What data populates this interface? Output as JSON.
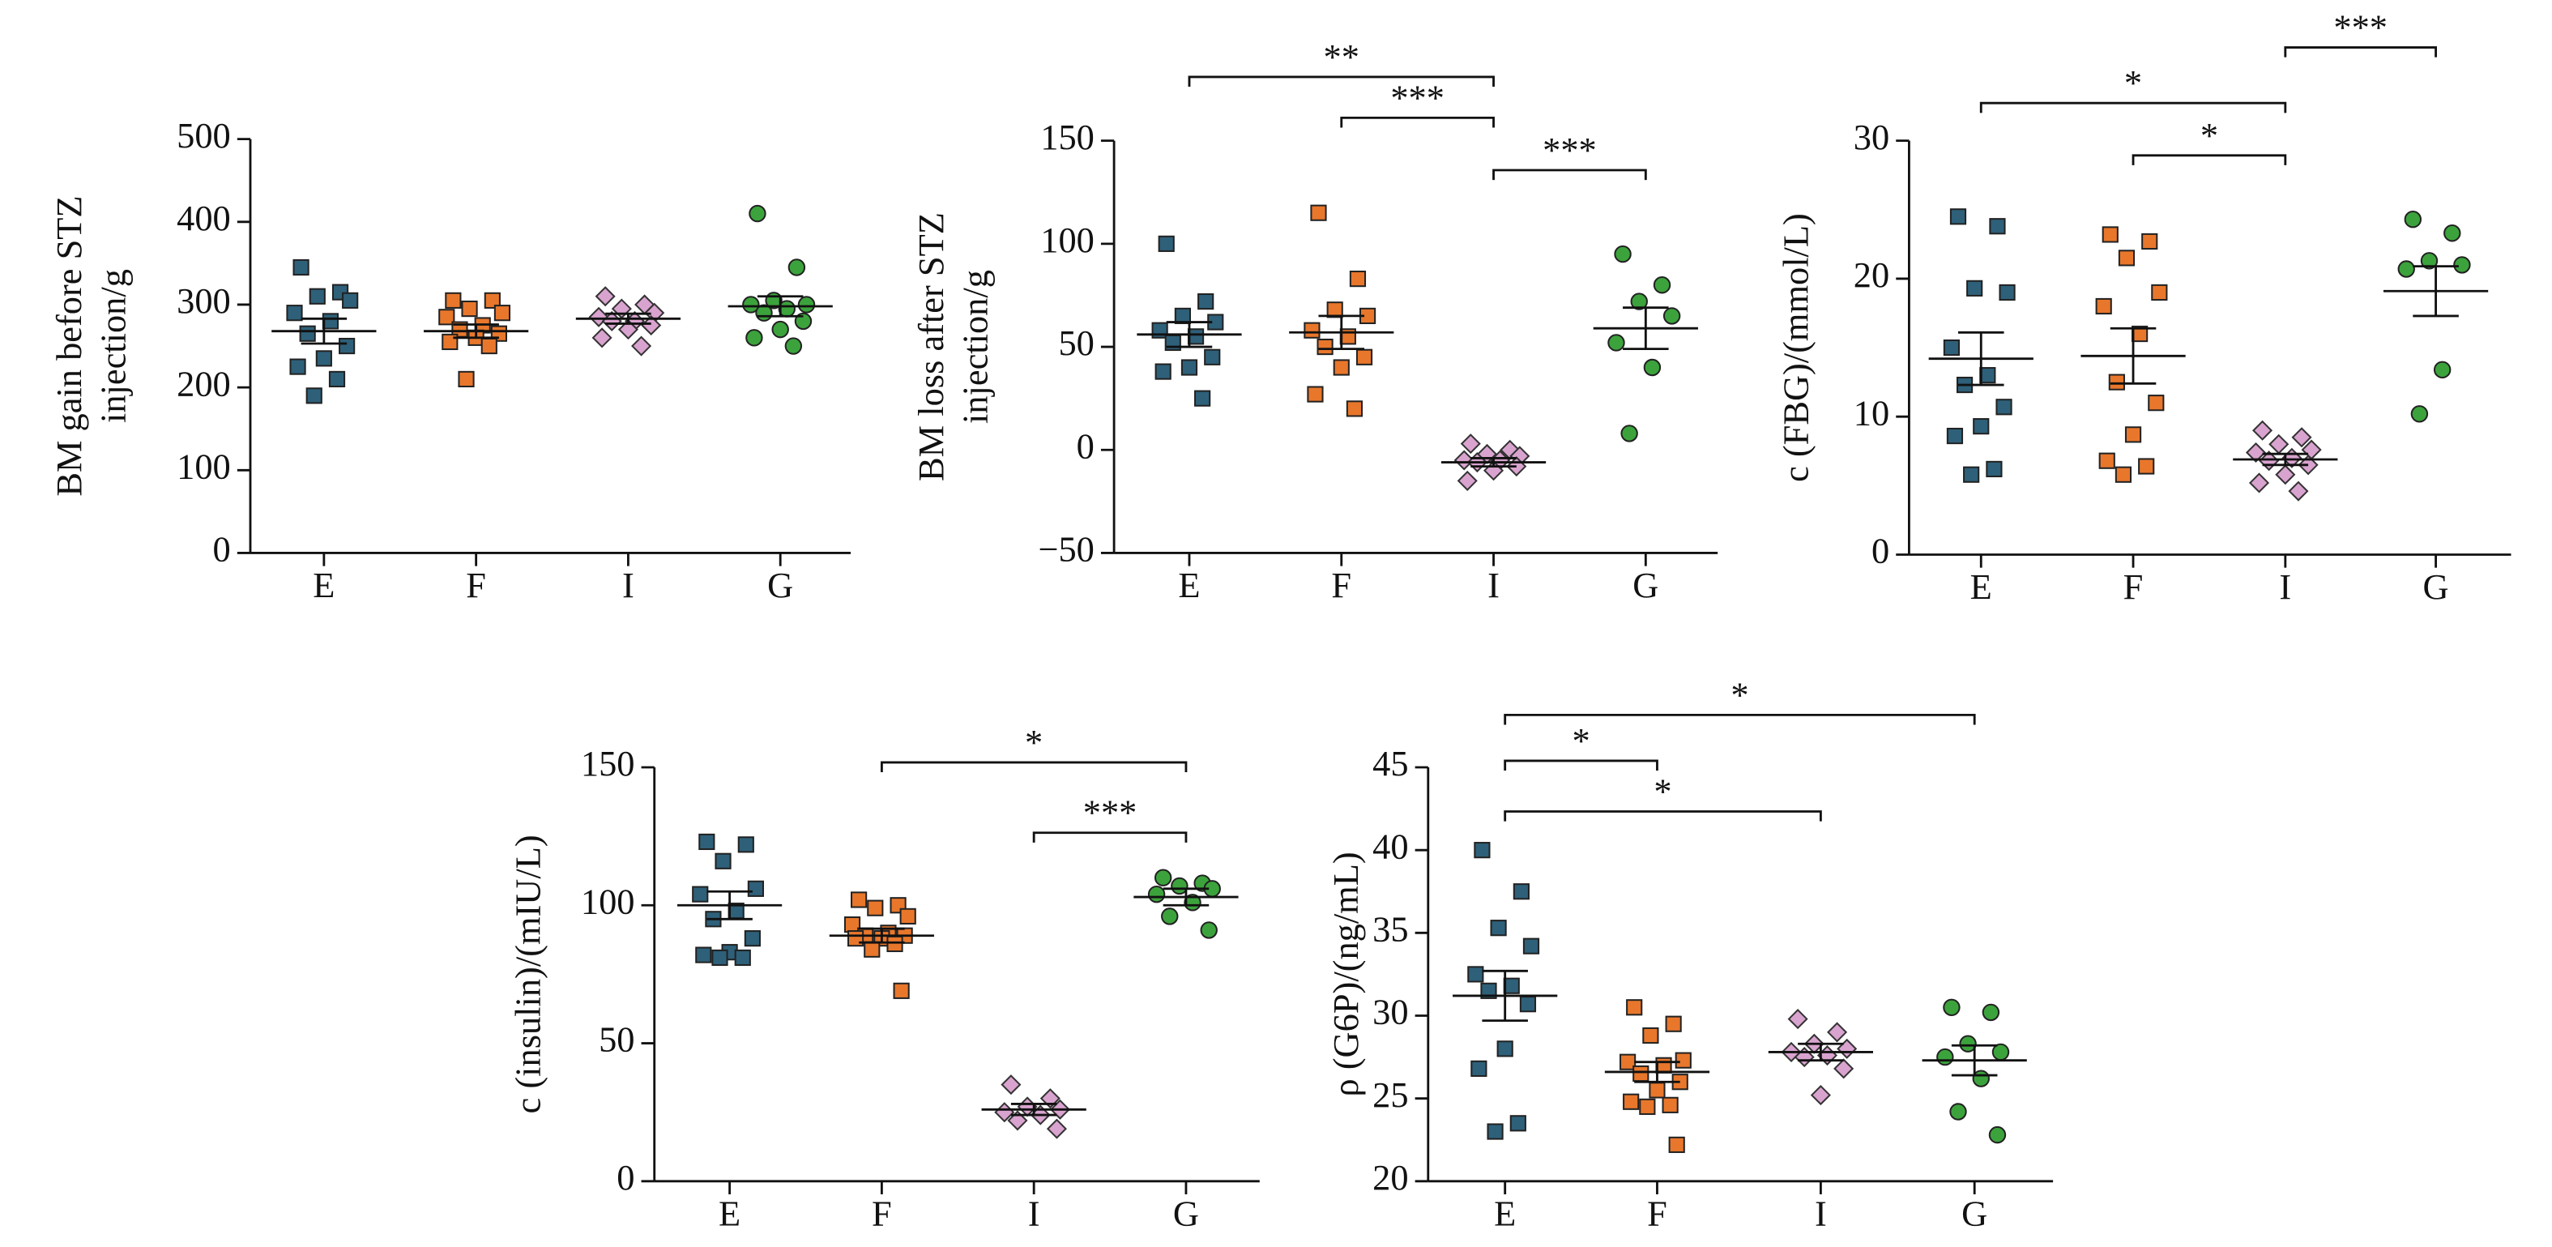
{
  "chart_data": [
    {
      "type": "dot",
      "ylabel": [
        "BM gain before STZ",
        "injection/g"
      ],
      "categories": [
        "E",
        "F",
        "I",
        "G"
      ],
      "ylim": [
        0,
        500
      ],
      "yticks": [
        0,
        100,
        200,
        300,
        400,
        500
      ],
      "colors": [
        "#2e6079",
        "#e8772c",
        "#d9a3cf",
        "#3ca33c"
      ],
      "markers": [
        "square",
        "square",
        "diamond",
        "circle"
      ],
      "points": [
        [
          345,
          315,
          310,
          305,
          290,
          280,
          265,
          250,
          235,
          225,
          210,
          190
        ],
        [
          305,
          305,
          295,
          290,
          285,
          275,
          270,
          265,
          260,
          255,
          250,
          210
        ],
        [
          310,
          300,
          295,
          290,
          285,
          280,
          280,
          275,
          270,
          260,
          250
        ],
        [
          410,
          345,
          305,
          300,
          300,
          295,
          290,
          280,
          270,
          260,
          250
        ]
      ],
      "means": [
        268,
        268,
        283,
        298
      ],
      "errors": [
        15,
        8,
        6,
        12
      ],
      "brackets": []
    },
    {
      "type": "dot",
      "ylabel": [
        "BM loss after STZ",
        "injection/g"
      ],
      "categories": [
        "E",
        "F",
        "I",
        "G"
      ],
      "ylim": [
        -50,
        150
      ],
      "yticks": [
        {
          "value": -50,
          "label": "−50"
        },
        0,
        50,
        100,
        150
      ],
      "colors": [
        "#2e6079",
        "#e8772c",
        "#d9a3cf",
        "#3ca33c"
      ],
      "markers": [
        "square",
        "square",
        "diamond",
        "circle"
      ],
      "points": [
        [
          100,
          72,
          65,
          62,
          58,
          55,
          52,
          45,
          40,
          38,
          25
        ],
        [
          115,
          83,
          68,
          65,
          58,
          55,
          50,
          45,
          40,
          27,
          20
        ],
        [
          3,
          0,
          -2,
          -3,
          -5,
          -5,
          -6,
          -8,
          -10,
          -15
        ],
        [
          95,
          80,
          72,
          65,
          52,
          40,
          8
        ]
      ],
      "means": [
        56,
        57,
        -6,
        59
      ],
      "errors": [
        6,
        8,
        2,
        10
      ],
      "brackets": [
        {
          "from": "E",
          "to": "I",
          "label": "**"
        },
        {
          "from": "F",
          "to": "I",
          "label": "***"
        },
        {
          "from": "I",
          "to": "G",
          "label": "***"
        }
      ]
    },
    {
      "type": "dot",
      "ylabel": [
        "c (FBG)/(mmol/L)"
      ],
      "categories": [
        "E",
        "F",
        "I",
        "G"
      ],
      "ylim": [
        0,
        30
      ],
      "yticks": [
        0,
        10,
        20,
        30
      ],
      "colors": [
        "#2e6079",
        "#e8772c",
        "#d9a3cf",
        "#3ca33c"
      ],
      "markers": [
        "square",
        "square",
        "diamond",
        "circle"
      ],
      "points": [
        [
          24.5,
          23.8,
          19.3,
          19,
          15,
          13,
          12.3,
          10.7,
          9.3,
          8.6,
          6.2,
          5.8
        ],
        [
          23.2,
          22.7,
          21.5,
          19,
          18,
          16,
          12.5,
          11,
          8.7,
          6.8,
          6.4,
          5.8
        ],
        [
          9,
          8.5,
          8,
          7.6,
          7.4,
          7,
          6.8,
          6.5,
          5.8,
          5.2,
          4.6
        ],
        [
          24.3,
          23.3,
          21.3,
          21,
          20.7,
          13.4,
          10.2
        ]
      ],
      "means": [
        14.2,
        14.4,
        6.9,
        19.1
      ],
      "errors": [
        1.9,
        2,
        0.4,
        1.8
      ],
      "brackets": [
        {
          "from": "E",
          "to": "I",
          "label": "*"
        },
        {
          "from": "F",
          "to": "I",
          "label": "*"
        },
        {
          "from": "I",
          "to": "G",
          "label": "***"
        }
      ]
    },
    {
      "type": "dot",
      "ylabel": [
        "c (insulin)/(mIU/L)"
      ],
      "categories": [
        "E",
        "F",
        "I",
        "G"
      ],
      "ylim": [
        0,
        150
      ],
      "yticks": [
        0,
        50,
        100,
        150
      ],
      "colors": [
        "#2e6079",
        "#e8772c",
        "#d9a3cf",
        "#3ca33c"
      ],
      "markers": [
        "square",
        "square",
        "diamond",
        "circle"
      ],
      "points": [
        [
          123,
          122,
          116,
          106,
          104,
          98,
          95,
          88,
          83,
          82,
          81,
          81
        ],
        [
          102,
          100,
          99,
          96,
          93,
          90,
          89,
          89,
          88,
          88,
          86,
          84,
          69
        ],
        [
          35,
          30,
          27,
          26,
          25,
          24,
          22,
          19
        ],
        [
          110,
          108,
          107,
          106,
          104,
          101,
          96,
          91
        ]
      ],
      "means": [
        100,
        89,
        26,
        103
      ],
      "errors": [
        5,
        2.5,
        2,
        3
      ],
      "brackets": [
        {
          "from": "F",
          "to": "G",
          "label": "*"
        },
        {
          "from": "I",
          "to": "G",
          "label": "***"
        }
      ]
    },
    {
      "type": "dot",
      "ylabel": [
        "ρ (G6P)/(ng/mL)"
      ],
      "categories": [
        "E",
        "F",
        "I",
        "G"
      ],
      "ylim": [
        20,
        45
      ],
      "yticks": [
        20,
        25,
        30,
        35,
        40,
        45
      ],
      "colors": [
        "#2e6079",
        "#e8772c",
        "#d9a3cf",
        "#3ca33c"
      ],
      "markers": [
        "square",
        "square",
        "diamond",
        "circle"
      ],
      "points": [
        [
          40,
          37.5,
          35.3,
          34.2,
          32.5,
          31.8,
          31.5,
          30.7,
          28,
          26.8,
          23.5,
          23
        ],
        [
          30.5,
          29.5,
          28.8,
          27.3,
          27.2,
          27,
          26.5,
          26,
          25.5,
          24.8,
          24.6,
          24.5,
          22.2
        ],
        [
          29.8,
          29,
          28.3,
          28,
          27.8,
          27.6,
          27.5,
          26.8,
          25.2
        ],
        [
          30.5,
          30.2,
          28.3,
          27.8,
          27.5,
          26.2,
          24.2,
          22.8
        ]
      ],
      "means": [
        31.2,
        26.6,
        27.8,
        27.3
      ],
      "errors": [
        1.5,
        0.6,
        0.5,
        0.9
      ],
      "brackets": [
        {
          "from": "E",
          "to": "G",
          "label": "*"
        },
        {
          "from": "E",
          "to": "F",
          "label": "*"
        },
        {
          "from": "E",
          "to": "I",
          "label": "*"
        }
      ]
    }
  ]
}
